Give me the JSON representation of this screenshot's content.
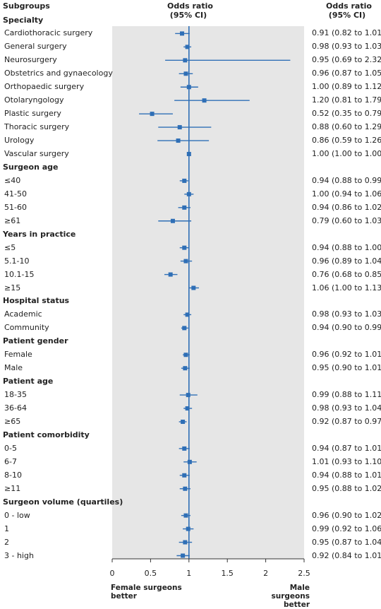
{
  "header": {
    "subgroups": "Subgroups",
    "odds_title": "Odds ratio",
    "odds_sub": "(95% CI)",
    "ci_title": "Odds ratio",
    "ci_sub": "(95% CI)"
  },
  "footer": {
    "left_1": "Female surgeons",
    "left_2": "better",
    "right_1": "Male surgeons",
    "right_2": "better"
  },
  "colors": {
    "marker": "#2f6fb6",
    "line": "#2f6fb6",
    "panel": "#e6e6e6"
  },
  "chart_data": {
    "type": "forest",
    "xlim": [
      0,
      2.5
    ],
    "x_ticks": [
      "0",
      "0.5",
      "1",
      "1.5",
      "2",
      "2.5"
    ],
    "reference_line": 1,
    "grid": false,
    "rows": [
      {
        "label": "Specialty",
        "group": true
      },
      {
        "label": "Cardiothoracic surgery",
        "or": 0.91,
        "lo": 0.82,
        "hi": 1.01,
        "text": "0.91 (0.82 to 1.01)"
      },
      {
        "label": "General surgery",
        "or": 0.98,
        "lo": 0.93,
        "hi": 1.03,
        "text": "0.98 (0.93 to 1.03)"
      },
      {
        "label": "Neurosurgery",
        "or": 0.95,
        "lo": 0.69,
        "hi": 2.32,
        "text": "0.95 (0.69 to 2.32)"
      },
      {
        "label": "Obstetrics and gynaecology",
        "or": 0.96,
        "lo": 0.87,
        "hi": 1.05,
        "text": "0.96 (0.87 to 1.05)"
      },
      {
        "label": "Orthopaedic surgery",
        "or": 1.0,
        "lo": 0.89,
        "hi": 1.12,
        "text": "1.00 (0.89 to 1.12)"
      },
      {
        "label": "Otolaryngology",
        "or": 1.2,
        "lo": 0.81,
        "hi": 1.79,
        "text": "1.20 (0.81 to 1.79)"
      },
      {
        "label": "Plastic surgery",
        "or": 0.52,
        "lo": 0.35,
        "hi": 0.79,
        "text": "0.52 (0.35 to 0.79)"
      },
      {
        "label": "Thoracic surgery",
        "or": 0.88,
        "lo": 0.6,
        "hi": 1.29,
        "text": "0.88 (0.60 to 1.29)"
      },
      {
        "label": "Urology",
        "or": 0.86,
        "lo": 0.59,
        "hi": 1.26,
        "text": "0.86 (0.59 to 1.26)"
      },
      {
        "label": "Vascular surgery",
        "or": 1.0,
        "lo": 1.0,
        "hi": 1.0,
        "text": "1.00 (1.00 to 1.00)"
      },
      {
        "label": "Surgeon age",
        "group": true
      },
      {
        "label": "≤40",
        "or": 0.94,
        "lo": 0.88,
        "hi": 0.99,
        "text": "0.94 (0.88 to 0.99)"
      },
      {
        "label": "41-50",
        "or": 1.0,
        "lo": 0.94,
        "hi": 1.06,
        "text": "1.00 (0.94 to 1.06)"
      },
      {
        "label": "51-60",
        "or": 0.94,
        "lo": 0.86,
        "hi": 1.02,
        "text": "0.94 (0.86 to 1.02)"
      },
      {
        "label": "≥61",
        "or": 0.79,
        "lo": 0.6,
        "hi": 1.03,
        "text": "0.79 (0.60 to 1.03)"
      },
      {
        "label": "Years in practice",
        "group": true
      },
      {
        "label": "≤5",
        "or": 0.94,
        "lo": 0.88,
        "hi": 1.0,
        "text": "0.94 (0.88 to 1.00)"
      },
      {
        "label": "5.1-10",
        "or": 0.96,
        "lo": 0.89,
        "hi": 1.04,
        "text": "0.96 (0.89 to 1.04)"
      },
      {
        "label": "10.1-15",
        "or": 0.76,
        "lo": 0.68,
        "hi": 0.85,
        "text": "0.76 (0.68 to 0.85)"
      },
      {
        "label": "≥15",
        "or": 1.06,
        "lo": 1.0,
        "hi": 1.13,
        "text": "1.06 (1.00 to 1.13)"
      },
      {
        "label": "Hospital status",
        "group": true
      },
      {
        "label": "Academic",
        "or": 0.98,
        "lo": 0.93,
        "hi": 1.03,
        "text": "0.98 (0.93 to 1.03)"
      },
      {
        "label": "Community",
        "or": 0.94,
        "lo": 0.9,
        "hi": 0.99,
        "text": "0.94 (0.90 to 0.99)"
      },
      {
        "label": "Patient gender",
        "group": true
      },
      {
        "label": "Female",
        "or": 0.96,
        "lo": 0.92,
        "hi": 1.01,
        "text": "0.96 (0.92 to 1.01)"
      },
      {
        "label": "Male",
        "or": 0.95,
        "lo": 0.9,
        "hi": 1.01,
        "text": "0.95 (0.90 to 1.01)"
      },
      {
        "label": "Patient age",
        "group": true
      },
      {
        "label": "18-35",
        "or": 0.99,
        "lo": 0.88,
        "hi": 1.11,
        "text": "0.99 (0.88 to 1.11)"
      },
      {
        "label": "36-64",
        "or": 0.98,
        "lo": 0.93,
        "hi": 1.04,
        "text": "0.98 (0.93 to 1.04)"
      },
      {
        "label": "≥65",
        "or": 0.92,
        "lo": 0.87,
        "hi": 0.97,
        "text": "0.92 (0.87 to 0.97)"
      },
      {
        "label": "Patient comorbidity",
        "group": true
      },
      {
        "label": "0-5",
        "or": 0.94,
        "lo": 0.87,
        "hi": 1.01,
        "text": "0.94 (0.87 to 1.01)"
      },
      {
        "label": "6-7",
        "or": 1.01,
        "lo": 0.93,
        "hi": 1.1,
        "text": "1.01 (0.93 to 1.10)"
      },
      {
        "label": "8-10",
        "or": 0.94,
        "lo": 0.88,
        "hi": 1.01,
        "text": "0.94 (0.88 to 1.01)"
      },
      {
        "label": "≥11",
        "or": 0.95,
        "lo": 0.88,
        "hi": 1.02,
        "text": "0.95 (0.88 to 1.02)"
      },
      {
        "label": "Surgeon volume (quartiles)",
        "group": true
      },
      {
        "label": "0 - low",
        "or": 0.96,
        "lo": 0.9,
        "hi": 1.02,
        "text": "0.96 (0.90 to 1.02)"
      },
      {
        "label": "1",
        "or": 0.99,
        "lo": 0.92,
        "hi": 1.06,
        "text": "0.99 (0.92 to 1.06)"
      },
      {
        "label": "2",
        "or": 0.95,
        "lo": 0.87,
        "hi": 1.04,
        "text": "0.95 (0.87 to 1.04)"
      },
      {
        "label": "3 - high",
        "or": 0.92,
        "lo": 0.84,
        "hi": 1.01,
        "text": "0.92 (0.84 to 1.01)"
      }
    ]
  }
}
